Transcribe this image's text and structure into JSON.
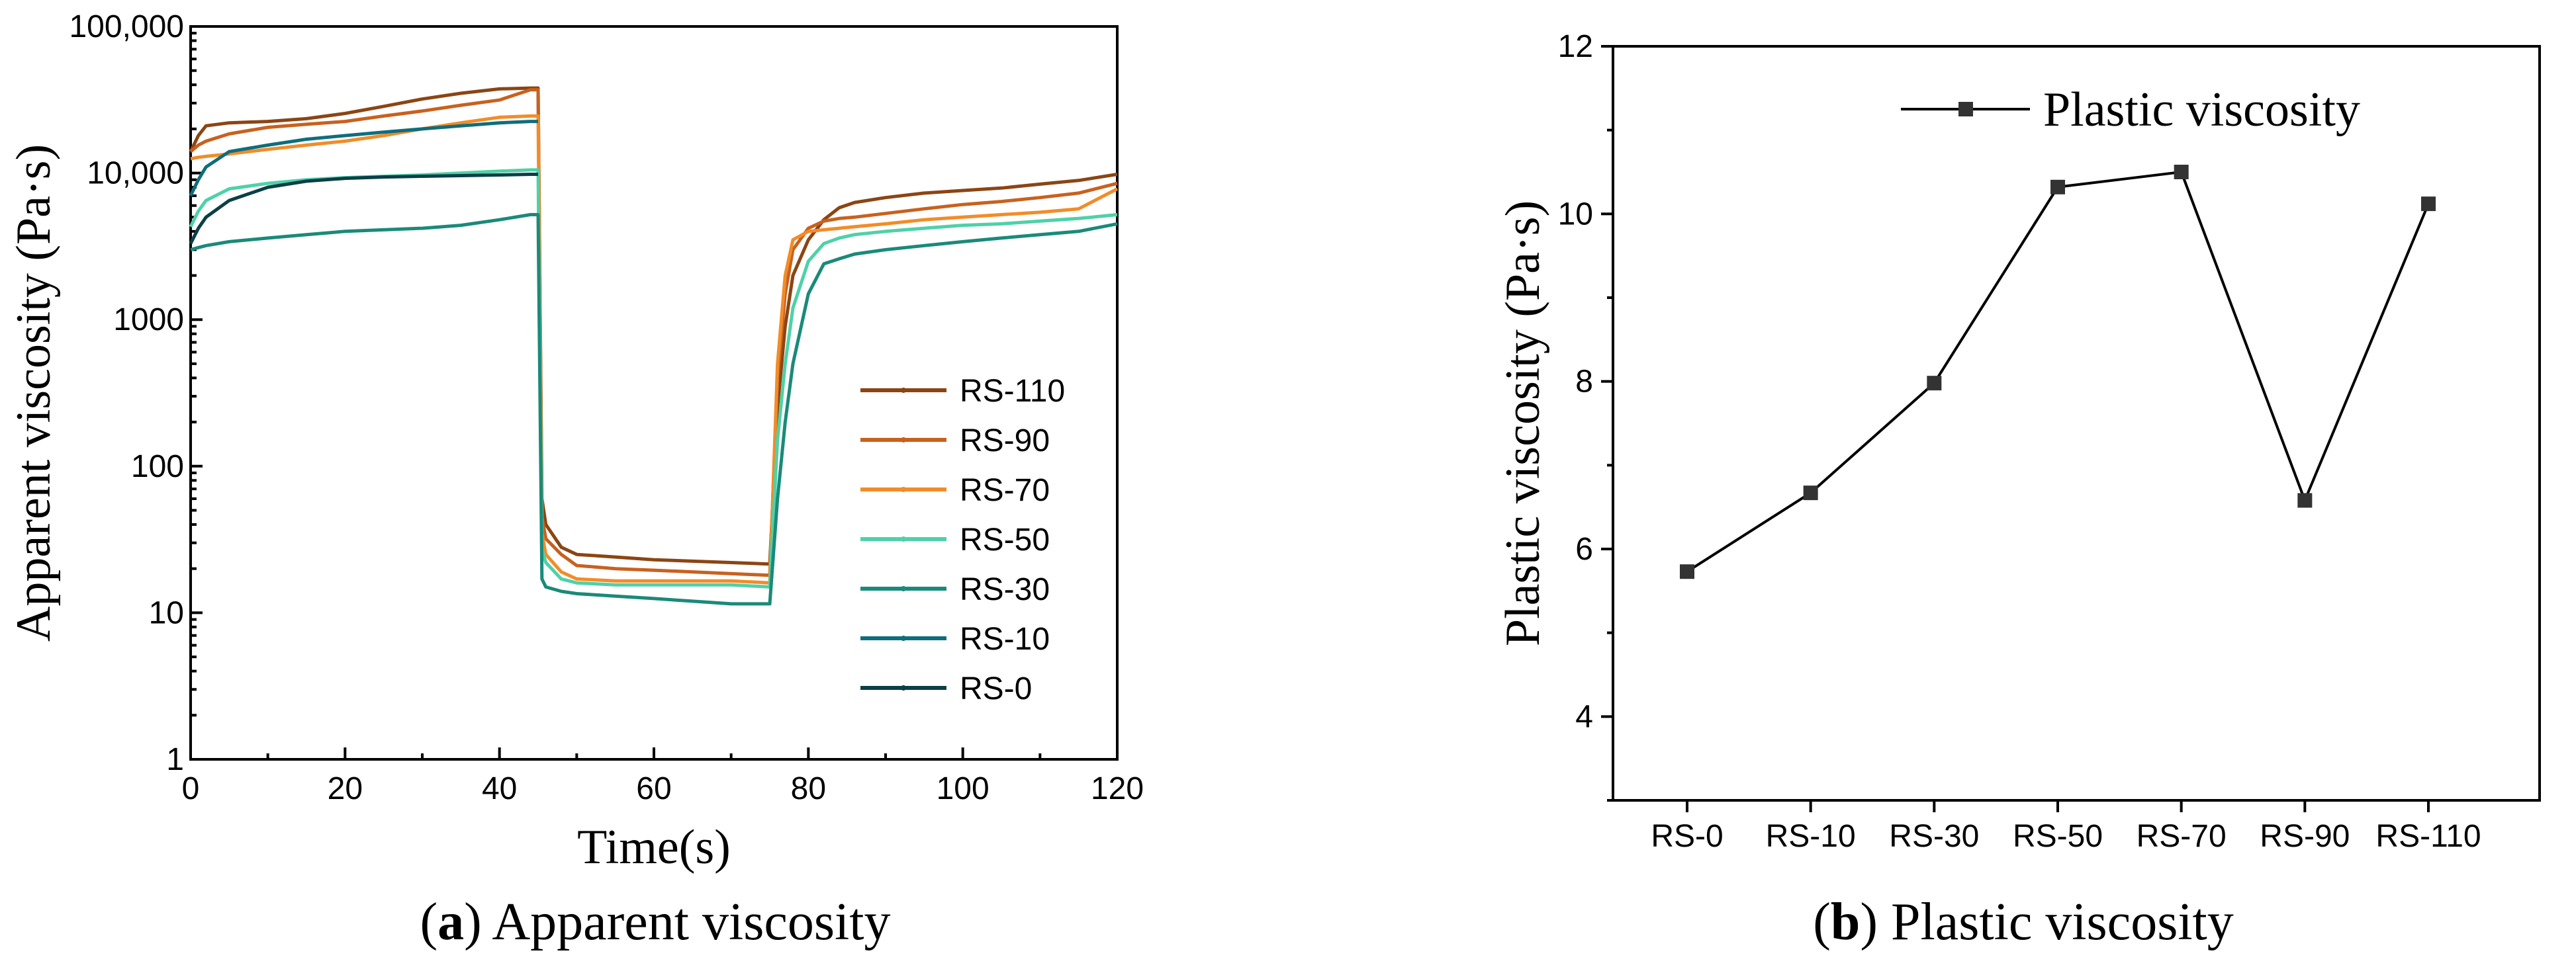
{
  "chart_data": [
    {
      "type": "line",
      "caption_letter": "a",
      "caption_text": " Apparent viscosity",
      "xlabel": "Time(s)",
      "ylabel": "Apparent viscosity (Pa·s)",
      "xlim": [
        0,
        120
      ],
      "ylim": [
        1,
        100000
      ],
      "yscale": "log",
      "xticks": [
        0,
        20,
        40,
        60,
        80,
        100,
        120
      ],
      "yticks": [
        1,
        10,
        100,
        1000,
        10000,
        100000
      ],
      "ytick_labels": [
        "1",
        "10",
        "100",
        "1000",
        "10,000",
        "100,000"
      ],
      "grid": false,
      "legend_position": "center-right",
      "series": [
        {
          "name": "RS-110",
          "color": "#8B4513",
          "x": [
            0,
            1,
            2,
            5,
            10,
            15,
            20,
            25,
            30,
            35,
            40,
            44,
            45,
            45.5,
            46,
            48,
            50,
            55,
            60,
            65,
            70,
            75,
            76,
            77,
            78,
            80,
            82,
            84,
            86,
            90,
            95,
            100,
            105,
            110,
            115,
            120
          ],
          "y": [
            14000,
            18000,
            21000,
            22000,
            22500,
            23500,
            25500,
            28500,
            32000,
            35000,
            37500,
            38000,
            38000,
            60,
            40,
            28,
            25,
            24,
            23,
            22.5,
            22,
            21.5,
            250,
            900,
            2000,
            3500,
            4800,
            5800,
            6300,
            6800,
            7300,
            7600,
            7900,
            8400,
            8900,
            9800
          ]
        },
        {
          "name": "RS-90",
          "color": "#C8611E",
          "x": [
            0,
            1,
            2,
            5,
            10,
            15,
            20,
            25,
            30,
            35,
            40,
            44,
            45,
            45.5,
            46,
            48,
            50,
            55,
            60,
            65,
            70,
            75,
            76,
            77,
            78,
            80,
            82,
            84,
            86,
            90,
            95,
            100,
            105,
            110,
            115,
            120
          ],
          "y": [
            14000,
            15500,
            16500,
            18500,
            20500,
            21500,
            22500,
            24500,
            26500,
            29000,
            31500,
            37000,
            37000,
            45,
            32,
            25,
            21,
            20,
            19.5,
            19,
            18.5,
            18,
            400,
            1500,
            3000,
            4200,
            4700,
            4900,
            5000,
            5300,
            5700,
            6100,
            6400,
            6800,
            7300,
            8500
          ]
        },
        {
          "name": "RS-70",
          "color": "#F28C28",
          "x": [
            0,
            1,
            2,
            5,
            10,
            15,
            20,
            25,
            30,
            35,
            40,
            44,
            45,
            45.5,
            46,
            48,
            50,
            55,
            60,
            65,
            70,
            75,
            76,
            77,
            78,
            80,
            82,
            84,
            86,
            90,
            95,
            100,
            105,
            110,
            115,
            120
          ],
          "y": [
            12500,
            12800,
            13000,
            13500,
            14500,
            15500,
            16500,
            18000,
            20000,
            22000,
            24000,
            24500,
            24500,
            35,
            25,
            19,
            17,
            16.5,
            16.5,
            16.5,
            16.5,
            16,
            500,
            2000,
            3500,
            4000,
            4100,
            4200,
            4300,
            4500,
            4800,
            5000,
            5200,
            5400,
            5700,
            7800
          ]
        },
        {
          "name": "RS-50",
          "color": "#4FD1A8",
          "x": [
            0,
            1,
            2,
            5,
            10,
            15,
            20,
            25,
            30,
            35,
            40,
            44,
            45,
            45.5,
            46,
            48,
            50,
            55,
            60,
            65,
            70,
            75,
            76,
            77,
            78,
            80,
            82,
            84,
            86,
            90,
            95,
            100,
            105,
            110,
            115,
            120
          ],
          "y": [
            4300,
            5500,
            6500,
            7800,
            8500,
            9000,
            9300,
            9500,
            9700,
            10000,
            10300,
            10500,
            10500,
            27,
            22,
            17,
            16,
            15.5,
            15.5,
            15.5,
            15.5,
            15,
            150,
            500,
            1200,
            2500,
            3300,
            3600,
            3800,
            4000,
            4200,
            4400,
            4500,
            4700,
            4900,
            5200
          ]
        },
        {
          "name": "RS-30",
          "color": "#1A8A7A",
          "x": [
            0,
            1,
            2,
            5,
            10,
            15,
            20,
            25,
            30,
            35,
            40,
            44,
            45,
            45.5,
            46,
            48,
            50,
            55,
            60,
            65,
            70,
            75,
            76,
            77,
            78,
            80,
            82,
            84,
            86,
            90,
            95,
            100,
            105,
            110,
            115,
            120
          ],
          "y": [
            3000,
            3100,
            3200,
            3400,
            3600,
            3800,
            4000,
            4100,
            4200,
            4400,
            4800,
            5200,
            5200,
            17,
            15,
            14,
            13.5,
            13,
            12.5,
            12,
            11.5,
            11.5,
            60,
            200,
            500,
            1500,
            2400,
            2600,
            2800,
            3000,
            3200,
            3400,
            3600,
            3800,
            4000,
            4500
          ]
        },
        {
          "name": "RS-10",
          "color": "#0E6E7C",
          "x": [
            0,
            1,
            2,
            5,
            10,
            15,
            20,
            25,
            30,
            35,
            40,
            44,
            45
          ],
          "y": [
            7000,
            9000,
            11000,
            14000,
            15500,
            17000,
            18000,
            19000,
            20000,
            21000,
            22000,
            22500,
            22500
          ]
        },
        {
          "name": "RS-0",
          "color": "#0B3F47",
          "x": [
            0,
            1,
            2,
            5,
            10,
            15,
            20,
            25,
            30,
            35,
            40,
            44,
            45
          ],
          "y": [
            3300,
            4200,
            5000,
            6500,
            8000,
            8800,
            9200,
            9400,
            9500,
            9600,
            9700,
            9800,
            9800
          ]
        }
      ]
    },
    {
      "type": "line",
      "caption_letter": "b",
      "caption_text": " Plastic viscosity",
      "xlabel": "",
      "ylabel": "Plastic viscosity (Pa·s)",
      "categories": [
        "RS-0",
        "RS-10",
        "RS-30",
        "RS-50",
        "RS-70",
        "RS-90",
        "RS-110"
      ],
      "ylim": [
        3,
        12
      ],
      "yticks": [
        4,
        6,
        8,
        10,
        12
      ],
      "grid": false,
      "legend_position": "top-right",
      "series": [
        {
          "name": "Plastic viscosity",
          "color": "#000000",
          "marker": "square",
          "values": [
            5.73,
            6.67,
            7.98,
            10.32,
            10.5,
            6.58,
            10.12
          ]
        }
      ]
    }
  ]
}
